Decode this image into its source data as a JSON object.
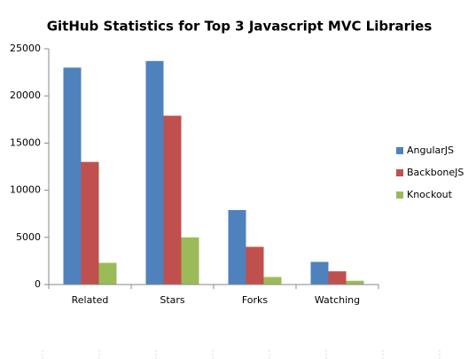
{
  "chart_data": {
    "type": "bar",
    "title": "GitHub Statistics for Top 3 Javascript MVC Libraries",
    "categories": [
      "Related",
      "Stars",
      "Forks",
      "Watching"
    ],
    "series": [
      {
        "name": "AngularJS",
        "color": "#4f81bd",
        "values": [
          23000,
          23700,
          7900,
          2400
        ]
      },
      {
        "name": "BackboneJS",
        "color": "#c0504d",
        "values": [
          13000,
          17900,
          4000,
          1400
        ]
      },
      {
        "name": "Knockout",
        "color": "#9bbb59",
        "values": [
          2300,
          5000,
          800,
          400
        ]
      }
    ],
    "ylim": [
      0,
      25000
    ],
    "yticks": [
      0,
      5000,
      10000,
      15000,
      20000,
      25000
    ],
    "grid": false,
    "legend": "right"
  }
}
